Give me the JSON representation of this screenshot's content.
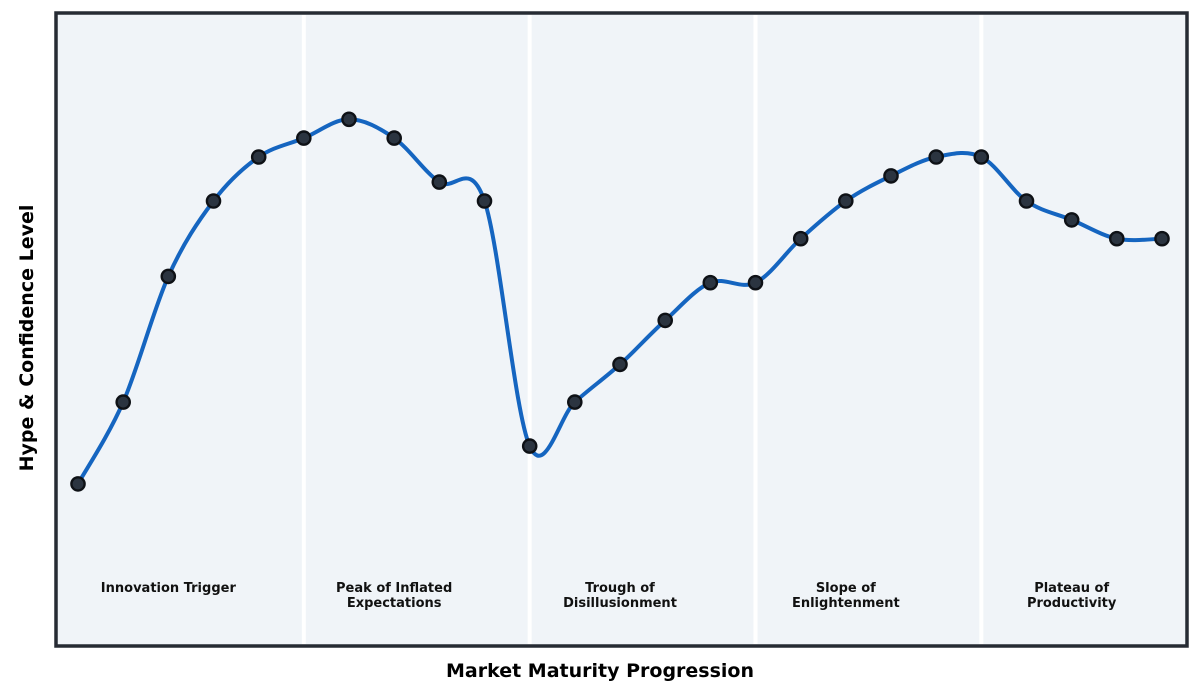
{
  "figure": {
    "ylabel": "Hype & Confidence Level"
  },
  "chart_data": {
    "type": "line",
    "title": "",
    "xlabel": "Market Maturity Progression",
    "ylabel": "Hype & Confidence Level",
    "x": [
      0,
      1,
      2,
      3,
      4,
      5,
      6,
      7,
      8,
      9,
      10,
      11,
      12,
      13,
      14,
      15,
      16,
      17,
      18,
      19,
      20,
      21,
      22,
      23,
      24
    ],
    "values": [
      25,
      38,
      58,
      70,
      77,
      80,
      83,
      80,
      73,
      70,
      31,
      38,
      44,
      51,
      57,
      57,
      64,
      70,
      74,
      77,
      77,
      70,
      67,
      64,
      64
    ],
    "series_name": "Hype & Confidence Level",
    "xlim": [
      0,
      24
    ],
    "ylim": [
      0,
      100
    ],
    "grid": false,
    "legend": "none",
    "smooth": true,
    "phase_boundaries_x": [
      5,
      10,
      15,
      20
    ],
    "phases": [
      {
        "label": "Innovation Trigger",
        "center_x": 2
      },
      {
        "label": "Peak of Inflated\nExpectations",
        "center_x": 7
      },
      {
        "label": "Trough of\nDisillusionment",
        "center_x": 12
      },
      {
        "label": "Slope of\nEnlightenment",
        "center_x": 17
      },
      {
        "label": "Plateau of\nProductivity",
        "center_x": 22
      }
    ],
    "colors": {
      "line": "#1565c0",
      "marker_fill": "#2b3440",
      "marker_edge": "#0e1116",
      "plot_background": "#f0f4f8",
      "divider": "#ffffff",
      "border": "#262b33",
      "text": "#000000"
    }
  }
}
